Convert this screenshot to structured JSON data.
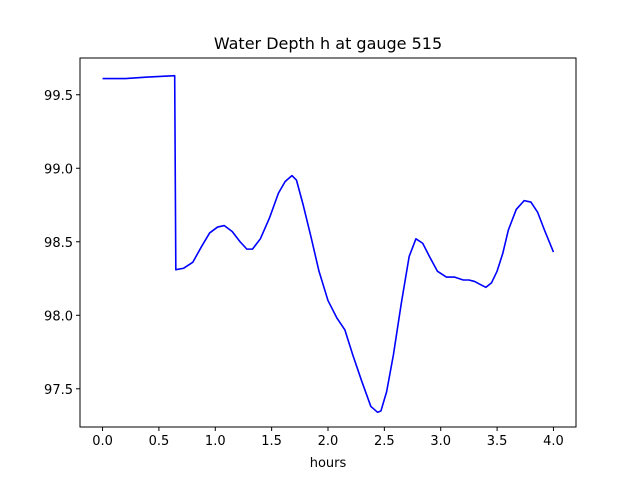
{
  "chart_data": {
    "type": "line",
    "title": "Water Depth h at gauge 515",
    "xlabel": "hours",
    "ylabel": "",
    "xlim": [
      -0.2,
      4.2
    ],
    "ylim": [
      97.24,
      99.75
    ],
    "xticks": [
      0.0,
      0.5,
      1.0,
      1.5,
      2.0,
      2.5,
      3.0,
      3.5,
      4.0
    ],
    "xtick_labels": [
      "0.0",
      "0.5",
      "1.0",
      "1.5",
      "2.0",
      "2.5",
      "3.0",
      "3.5",
      "4.0"
    ],
    "yticks": [
      97.5,
      98.0,
      98.5,
      99.0,
      99.5
    ],
    "ytick_labels": [
      "97.5",
      "98.0",
      "98.5",
      "99.0",
      "99.5"
    ],
    "grid": false,
    "series": [
      {
        "color": "#0000ff",
        "x": [
          0.0,
          0.2,
          0.4,
          0.64,
          0.65,
          0.72,
          0.8,
          0.88,
          0.95,
          1.02,
          1.08,
          1.15,
          1.22,
          1.28,
          1.33,
          1.4,
          1.48,
          1.56,
          1.62,
          1.68,
          1.72,
          1.78,
          1.85,
          1.92,
          2.0,
          2.08,
          2.15,
          2.22,
          2.3,
          2.38,
          2.44,
          2.47,
          2.52,
          2.58,
          2.65,
          2.72,
          2.78,
          2.84,
          2.9,
          2.97,
          3.05,
          3.12,
          3.2,
          3.25,
          3.3,
          3.35,
          3.4,
          3.45,
          3.5,
          3.55,
          3.6,
          3.67,
          3.74,
          3.8,
          3.86,
          3.92,
          4.0
        ],
        "y": [
          99.61,
          99.61,
          99.62,
          99.63,
          98.31,
          98.32,
          98.36,
          98.47,
          98.56,
          98.6,
          98.61,
          98.57,
          98.5,
          98.45,
          98.45,
          98.52,
          98.66,
          98.83,
          98.91,
          98.95,
          98.92,
          98.75,
          98.53,
          98.3,
          98.1,
          97.98,
          97.9,
          97.73,
          97.55,
          97.38,
          97.34,
          97.35,
          97.48,
          97.73,
          98.08,
          98.4,
          98.52,
          98.49,
          98.4,
          98.3,
          98.26,
          98.26,
          98.24,
          98.24,
          98.23,
          98.21,
          98.19,
          98.22,
          98.3,
          98.42,
          98.58,
          98.72,
          98.78,
          98.77,
          98.7,
          98.58,
          98.43
        ]
      }
    ]
  }
}
